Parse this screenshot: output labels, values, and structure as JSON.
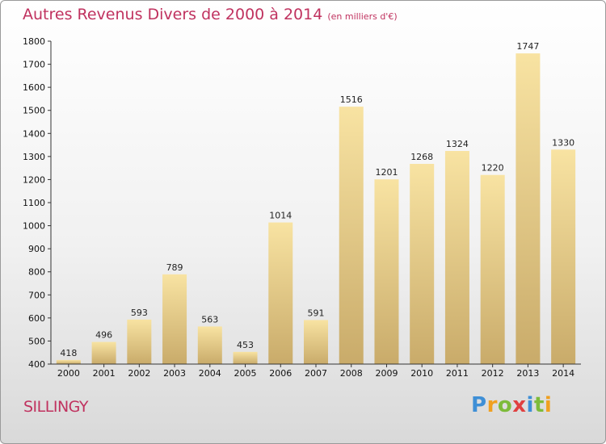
{
  "title": "Autres Revenus Divers de 2000 à 2014",
  "subtitle": "(en milliers d'€)",
  "place": "SILLINGY",
  "logo": "Proxiti",
  "colors": {
    "title": "#c0325f",
    "bar_light": "#f8e3a2",
    "bar_dark": "#c9ab6a",
    "axis": "#333333"
  },
  "chart_data": {
    "type": "bar",
    "title": "Autres Revenus Divers de 2000 à 2014",
    "subtitle": "(en milliers d'€)",
    "categories": [
      "2000",
      "2001",
      "2002",
      "2003",
      "2004",
      "2005",
      "2006",
      "2007",
      "2008",
      "2009",
      "2010",
      "2011",
      "2012",
      "2013",
      "2014"
    ],
    "values": [
      418,
      496,
      593,
      789,
      563,
      453,
      1014,
      591,
      1516,
      1201,
      1268,
      1324,
      1220,
      1747,
      1330
    ],
    "ylim": [
      400,
      1800
    ],
    "yticks": [
      400,
      500,
      600,
      700,
      800,
      900,
      1000,
      1100,
      1200,
      1300,
      1400,
      1500,
      1600,
      1700,
      1800
    ],
    "grid": false,
    "legend": "none"
  }
}
